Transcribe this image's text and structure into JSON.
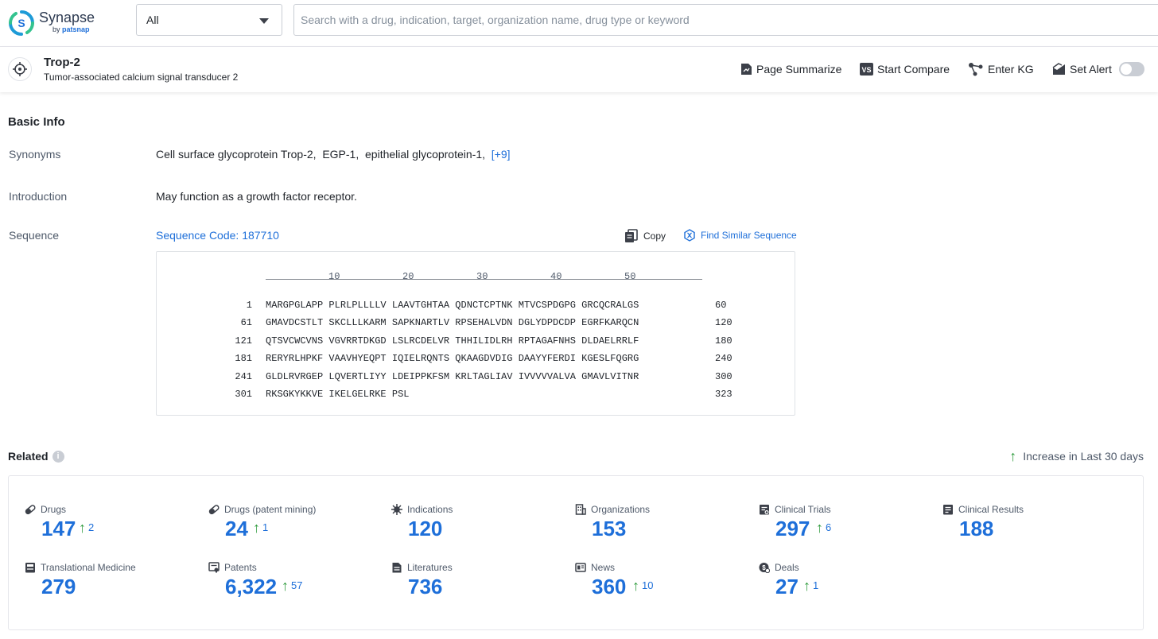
{
  "header": {
    "logo_name": "Synapse",
    "logo_by": "by",
    "logo_brand": "patsnap",
    "scope_select": "All",
    "search_placeholder": "Search with a drug, indication, target, organization name, drug type or keyword"
  },
  "target": {
    "name": "Trop-2",
    "full_name": "Tumor-associated calcium signal transducer 2",
    "actions": {
      "summarize": "Page Summarize",
      "compare": "Start Compare",
      "kg": "Enter KG",
      "alert": "Set Alert"
    },
    "alert_enabled": false
  },
  "basic_info": {
    "title": "Basic Info",
    "synonyms_label": "Synonyms",
    "synonyms": [
      "Cell surface glycoprotein Trop-2,",
      "EGP-1,",
      "epithelial glycoprotein-1,"
    ],
    "synonyms_more": "[+9]",
    "introduction_label": "Introduction",
    "introduction": "May function as a growth factor receptor.",
    "sequence_label": "Sequence",
    "sequence_code": "Sequence Code: 187710",
    "copy_label": "Copy",
    "find_similar_label": "Find Similar Sequence",
    "ruler_ticks": [
      "10",
      "20",
      "30",
      "40",
      "50"
    ],
    "sequence_rows": [
      {
        "start": "1",
        "text": "MARGPGLAPP PLRLPLLLLV LAAVTGHTAA QDNCTCPTNK MTVCSPDGPG GRCQCRALGS",
        "end": "60"
      },
      {
        "start": "61",
        "text": "GMAVDCSTLT SKCLLLKARM SAPKNARTLV RPSEHALVDN DGLYDPDCDP EGRFKARQCN",
        "end": "120"
      },
      {
        "start": "121",
        "text": "QTSVCWCVNS VGVRRTDKGD LSLRCDELVR THHILIDLRH RPTAGAFNHS DLDAELRRLF",
        "end": "180"
      },
      {
        "start": "181",
        "text": "RERYRLHPKF VAAVHYEQPT IQIELRQNTS QKAAGDVDIG DAAYYFERDI KGESLFQGRG",
        "end": "240"
      },
      {
        "start": "241",
        "text": "GLDLRVRGEP LQVERTLIYY LDEIPPKFSM KRLTAGLIAV IVVVVVALVA GMAVLVITNR",
        "end": "300"
      },
      {
        "start": "301",
        "text": "RKSGKYKKVE IKELGELRKE PSL",
        "end": "323"
      }
    ]
  },
  "related": {
    "title": "Related",
    "legend": "Increase in Last 30 days",
    "items": [
      {
        "label": "Drugs",
        "count": "147",
        "increase": "2",
        "icon": "pill-icon"
      },
      {
        "label": "Drugs (patent mining)",
        "count": "24",
        "increase": "1",
        "icon": "pill-icon"
      },
      {
        "label": "Indications",
        "count": "120",
        "increase": "",
        "icon": "virus-icon"
      },
      {
        "label": "Organizations",
        "count": "153",
        "increase": "",
        "icon": "building-icon"
      },
      {
        "label": "Clinical Trials",
        "count": "297",
        "increase": "6",
        "icon": "clipboard-icon"
      },
      {
        "label": "Clinical Results",
        "count": "188",
        "increase": "",
        "icon": "report-icon"
      },
      {
        "label": "Translational Medicine",
        "count": "279",
        "increase": "",
        "icon": "document-icon"
      },
      {
        "label": "Patents",
        "count": "6,322",
        "increase": "57",
        "icon": "patent-icon"
      },
      {
        "label": "Literatures",
        "count": "736",
        "increase": "",
        "icon": "literature-icon"
      },
      {
        "label": "News",
        "count": "360",
        "increase": "10",
        "icon": "news-icon"
      },
      {
        "label": "Deals",
        "count": "27",
        "increase": "1",
        "icon": "deal-icon"
      }
    ]
  },
  "colors": {
    "accent": "#1e6fd9",
    "increase": "#2e9b3c"
  }
}
